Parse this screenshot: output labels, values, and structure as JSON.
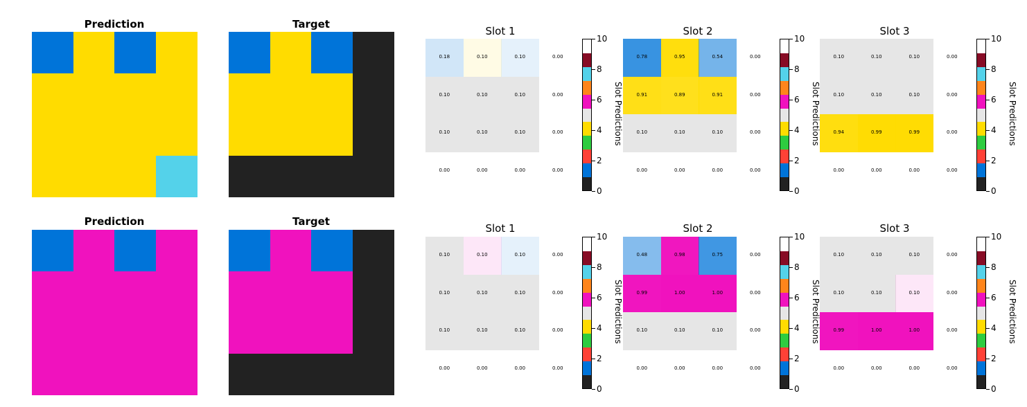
{
  "palette": [
    "#222222",
    "#0074d9",
    "#ff4136",
    "#2ecc40",
    "#ffdc00",
    "#e6e6e6",
    "#f012be",
    "#ff851b",
    "#54d2ea",
    "#870c25",
    "#ffffff"
  ],
  "chart_data": [
    {
      "type": "heatmap",
      "title": "Prediction",
      "grid": [
        [
          1,
          4,
          1,
          4
        ],
        [
          4,
          4,
          4,
          4
        ],
        [
          4,
          4,
          4,
          4
        ],
        [
          4,
          4,
          4,
          8
        ]
      ]
    },
    {
      "type": "heatmap",
      "title": "Target",
      "grid": [
        [
          1,
          4,
          1,
          0
        ],
        [
          4,
          4,
          4,
          0
        ],
        [
          4,
          4,
          4,
          0
        ],
        [
          0,
          0,
          0,
          0
        ]
      ]
    },
    {
      "type": "heatmap",
      "title": "Slot 1",
      "colorbar_label": "Slot Predictions",
      "colorbar_ticks": [
        "0",
        "2",
        "4",
        "6",
        "8",
        "10"
      ],
      "values": [
        [
          "0.18",
          "0.10",
          "0.10",
          "0.00"
        ],
        [
          "0.10",
          "0.10",
          "0.10",
          "0.00"
        ],
        [
          "0.10",
          "0.10",
          "0.10",
          "0.00"
        ],
        [
          "0.00",
          "0.00",
          "0.00",
          "0.00"
        ]
      ],
      "colors": [
        [
          1,
          4,
          1,
          null
        ],
        [
          5,
          5,
          5,
          null
        ],
        [
          5,
          5,
          5,
          null
        ],
        [
          null,
          null,
          null,
          null
        ]
      ],
      "opacity": [
        [
          0.18,
          0.1,
          0.1,
          0
        ],
        [
          1,
          1,
          1,
          0
        ],
        [
          1,
          1,
          1,
          0
        ],
        [
          0,
          0,
          0,
          0
        ]
      ]
    },
    {
      "type": "heatmap",
      "title": "Slot 2",
      "colorbar_label": "Slot Predictions",
      "colorbar_ticks": [
        "0",
        "2",
        "4",
        "6",
        "8",
        "10"
      ],
      "values": [
        [
          "0.78",
          "0.95",
          "0.54",
          "0.00"
        ],
        [
          "0.91",
          "0.89",
          "0.91",
          "0.00"
        ],
        [
          "0.10",
          "0.10",
          "0.10",
          "0.00"
        ],
        [
          "0.00",
          "0.00",
          "0.00",
          "0.00"
        ]
      ],
      "colors": [
        [
          1,
          4,
          1,
          null
        ],
        [
          4,
          4,
          4,
          null
        ],
        [
          5,
          5,
          5,
          null
        ],
        [
          null,
          null,
          null,
          null
        ]
      ],
      "opacity": [
        [
          0.78,
          0.95,
          0.54,
          0
        ],
        [
          0.91,
          0.89,
          0.91,
          0
        ],
        [
          1,
          1,
          1,
          0
        ],
        [
          0,
          0,
          0,
          0
        ]
      ]
    },
    {
      "type": "heatmap",
      "title": "Slot 3",
      "colorbar_label": "Slot Predictions",
      "colorbar_ticks": [
        "0",
        "2",
        "4",
        "6",
        "8",
        "10"
      ],
      "values": [
        [
          "0.10",
          "0.10",
          "0.10",
          "0.00"
        ],
        [
          "0.10",
          "0.10",
          "0.10",
          "0.00"
        ],
        [
          "0.94",
          "0.99",
          "0.99",
          "0.00"
        ],
        [
          "0.00",
          "0.00",
          "0.00",
          "0.00"
        ]
      ],
      "colors": [
        [
          5,
          5,
          5,
          null
        ],
        [
          5,
          5,
          5,
          null
        ],
        [
          4,
          4,
          4,
          null
        ],
        [
          null,
          null,
          null,
          null
        ]
      ],
      "opacity": [
        [
          1,
          1,
          1,
          0
        ],
        [
          1,
          1,
          1,
          0
        ],
        [
          0.94,
          0.99,
          0.99,
          0
        ],
        [
          0,
          0,
          0,
          0
        ]
      ]
    },
    {
      "type": "heatmap",
      "title": "Prediction",
      "grid": [
        [
          1,
          6,
          1,
          6
        ],
        [
          6,
          6,
          6,
          6
        ],
        [
          6,
          6,
          6,
          6
        ],
        [
          6,
          6,
          6,
          6
        ]
      ]
    },
    {
      "type": "heatmap",
      "title": "Target",
      "grid": [
        [
          1,
          6,
          1,
          0
        ],
        [
          6,
          6,
          6,
          0
        ],
        [
          6,
          6,
          6,
          0
        ],
        [
          0,
          0,
          0,
          0
        ]
      ]
    },
    {
      "type": "heatmap",
      "title": "Slot 1",
      "colorbar_label": "Slot Predictions",
      "colorbar_ticks": [
        "0",
        "2",
        "4",
        "6",
        "8",
        "10"
      ],
      "values": [
        [
          "0.10",
          "0.10",
          "0.10",
          "0.00"
        ],
        [
          "0.10",
          "0.10",
          "0.10",
          "0.00"
        ],
        [
          "0.10",
          "0.10",
          "0.10",
          "0.00"
        ],
        [
          "0.00",
          "0.00",
          "0.00",
          "0.00"
        ]
      ],
      "colors": [
        [
          5,
          6,
          1,
          null
        ],
        [
          5,
          5,
          5,
          null
        ],
        [
          5,
          5,
          5,
          null
        ],
        [
          null,
          null,
          null,
          null
        ]
      ],
      "opacity": [
        [
          1,
          0.1,
          0.1,
          0
        ],
        [
          1,
          1,
          1,
          0
        ],
        [
          1,
          1,
          1,
          0
        ],
        [
          0,
          0,
          0,
          0
        ]
      ]
    },
    {
      "type": "heatmap",
      "title": "Slot 2",
      "colorbar_label": "Slot Predictions",
      "colorbar_ticks": [
        "0",
        "2",
        "4",
        "6",
        "8",
        "10"
      ],
      "values": [
        [
          "0.48",
          "0.98",
          "0.75",
          "0.00"
        ],
        [
          "0.99",
          "1.00",
          "1.00",
          "0.00"
        ],
        [
          "0.10",
          "0.10",
          "0.10",
          "0.00"
        ],
        [
          "0.00",
          "0.00",
          "0.00",
          "0.00"
        ]
      ],
      "colors": [
        [
          1,
          6,
          1,
          null
        ],
        [
          6,
          6,
          6,
          null
        ],
        [
          5,
          5,
          5,
          null
        ],
        [
          null,
          null,
          null,
          null
        ]
      ],
      "opacity": [
        [
          0.48,
          0.98,
          0.75,
          0
        ],
        [
          0.99,
          1,
          1,
          0
        ],
        [
          1,
          1,
          1,
          0
        ],
        [
          0,
          0,
          0,
          0
        ]
      ]
    },
    {
      "type": "heatmap",
      "title": "Slot 3",
      "colorbar_label": "Slot Predictions",
      "colorbar_ticks": [
        "0",
        "2",
        "4",
        "6",
        "8",
        "10"
      ],
      "values": [
        [
          "0.10",
          "0.10",
          "0.10",
          "0.00"
        ],
        [
          "0.10",
          "0.10",
          "0.10",
          "0.00"
        ],
        [
          "0.99",
          "1.00",
          "1.00",
          "0.00"
        ],
        [
          "0.00",
          "0.00",
          "0.00",
          "0.00"
        ]
      ],
      "colors": [
        [
          5,
          5,
          5,
          null
        ],
        [
          5,
          5,
          6,
          null
        ],
        [
          6,
          6,
          6,
          null
        ],
        [
          null,
          null,
          null,
          null
        ]
      ],
      "opacity": [
        [
          1,
          1,
          1,
          0
        ],
        [
          1,
          1,
          0.1,
          0
        ],
        [
          0.99,
          1,
          1,
          0
        ],
        [
          0,
          0,
          0,
          0
        ]
      ]
    }
  ]
}
